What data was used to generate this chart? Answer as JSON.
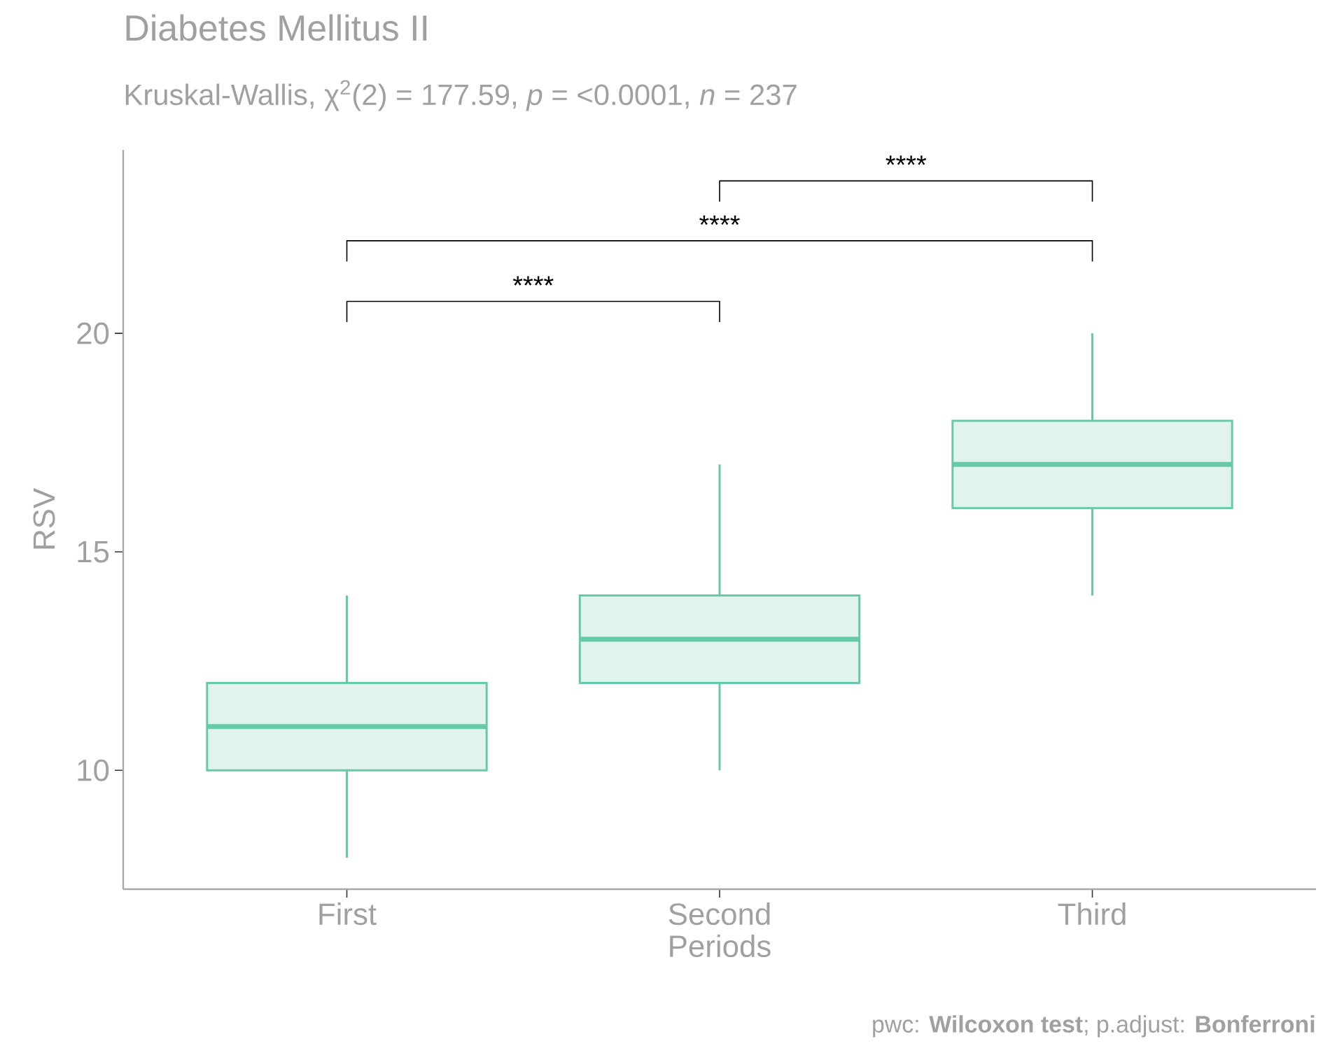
{
  "chart_data": {
    "type": "box",
    "title": "Diabetes Mellitus II",
    "subtitle": "Kruskal-Wallis, χ$^{2}$(2) = 177.59, *p* = <0.0001, *n* = 237",
    "xlabel": "Periods",
    "ylabel": "RSV",
    "categories": [
      "First",
      "Second",
      "Third"
    ],
    "boxes": [
      {
        "low": 8,
        "q1": 10,
        "median": 11,
        "q3": 12,
        "high": 14
      },
      {
        "low": 10,
        "q1": 12,
        "median": 13,
        "q3": 14,
        "high": 17
      },
      {
        "low": 14,
        "q1": 16,
        "median": 17,
        "q3": 18,
        "high": 20
      }
    ],
    "color": "#66c9a7",
    "ylim": [
      7.28,
      24.2
    ],
    "yticks": [
      10,
      15,
      20
    ],
    "annotations": [
      "****",
      "****",
      "****",
      "pwc: **Wilcoxon test**; p.adjust: **Bonferroni**"
    ]
  }
}
